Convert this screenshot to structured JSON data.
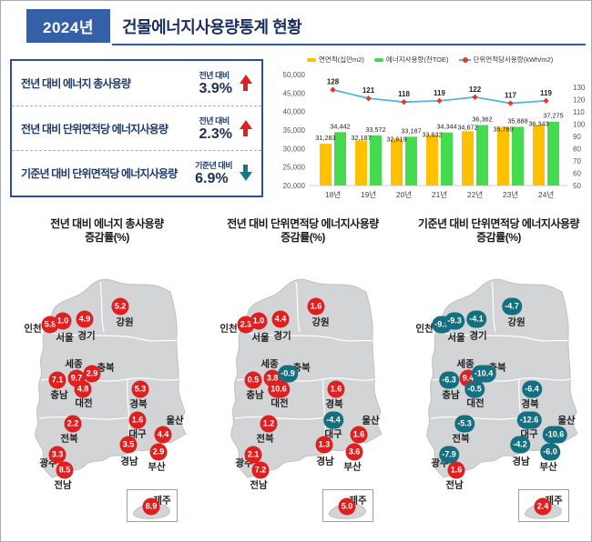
{
  "header": {
    "year_badge": "2024년",
    "title": "건물에너지사용량통계 현황"
  },
  "summary": {
    "rows": [
      {
        "label": "전년 대비 에너지 총사용량",
        "basis": "전년 대비",
        "value": "3.9%",
        "direction": "up"
      },
      {
        "label": "전년 대비 단위면적당 에너지사용량",
        "basis": "전년 대비",
        "value": "2.3%",
        "direction": "up"
      },
      {
        "label": "기준년 대비 단위면적당 에너지사용량",
        "basis": "기준년 대비",
        "value": "6.9%",
        "direction": "down"
      }
    ]
  },
  "chart_data": {
    "type": "bar",
    "subtype": "combo-bar-line",
    "categories": [
      "18년",
      "19년",
      "20년",
      "21년",
      "22년",
      "23년",
      "24년"
    ],
    "series": [
      {
        "name": "연면적(십만m2)",
        "kind": "bar",
        "color": "#FFC000",
        "values": [
          31283,
          32187,
          32619,
          33632,
          34672,
          35789,
          36343
        ],
        "labels": [
          "31,283",
          "32,187",
          "32,619",
          "33,632",
          "34,672",
          "35,789",
          "36,343"
        ]
      },
      {
        "name": "에너지사용량(천TOE)",
        "kind": "bar",
        "color": "#45DB4F",
        "values": [
          34442,
          33572,
          33187,
          34344,
          36362,
          35888,
          37275
        ],
        "labels": [
          "34,442",
          "33,572",
          "33,187",
          "34,344",
          "36,362",
          "35,888",
          "37,275"
        ]
      },
      {
        "name": "단위면적당사용량(kWh/m2)",
        "kind": "line",
        "color": "#4DB8E8",
        "marker_color": "#E03A30",
        "values": [
          128,
          121,
          118,
          119,
          122,
          117,
          119
        ],
        "labels": [
          "128",
          "121",
          "118",
          "119",
          "122",
          "117",
          "119"
        ]
      }
    ],
    "left_axis": {
      "min": 20000,
      "max": 50000,
      "ticks": [
        "50,000",
        "45,000",
        "40,000",
        "35,000",
        "30,000",
        "25,000",
        "20,000"
      ]
    },
    "right_axis": {
      "min": 50,
      "max": 130,
      "ticks": [
        "130",
        "120",
        "110",
        "100",
        "90",
        "80",
        "70",
        "60",
        "50"
      ]
    },
    "legend_position": "top",
    "grid": false
  },
  "maps": [
    {
      "title": "전년 대비 에너지 총사용량",
      "subtitle": "증감률(%)",
      "regions": [
        {
          "name": "인천",
          "value": "5.8"
        },
        {
          "name": "서울",
          "value": "1.0"
        },
        {
          "name": "경기",
          "value": "4.9"
        },
        {
          "name": "강원",
          "value": "5.2"
        },
        {
          "name": "세종",
          "value": "9.7"
        },
        {
          "name": "충북",
          "value": "2.9"
        },
        {
          "name": "충남",
          "value": "7.1"
        },
        {
          "name": "대전",
          "value": "4.8"
        },
        {
          "name": "경북",
          "value": "5.3"
        },
        {
          "name": "전북",
          "value": "2.2"
        },
        {
          "name": "대구",
          "value": "1.6"
        },
        {
          "name": "울산",
          "value": "4.4"
        },
        {
          "name": "경남",
          "value": "3.5"
        },
        {
          "name": "부산",
          "value": "2.9"
        },
        {
          "name": "광주",
          "value": "3.3"
        },
        {
          "name": "전남",
          "value": "8.5"
        },
        {
          "name": "제주",
          "value": "8.9"
        }
      ]
    },
    {
      "title": "전년 대비 단위면적당 에너지사용량",
      "subtitle": "증감률(%)",
      "regions": [
        {
          "name": "인천",
          "value": "2.3"
        },
        {
          "name": "서울",
          "value": "1.0"
        },
        {
          "name": "경기",
          "value": "4.4"
        },
        {
          "name": "강원",
          "value": "1.6"
        },
        {
          "name": "세종",
          "value": "3.8"
        },
        {
          "name": "충북",
          "value": "-0.9"
        },
        {
          "name": "충남",
          "value": "0.5"
        },
        {
          "name": "대전",
          "value": "10.6"
        },
        {
          "name": "경북",
          "value": "1.6"
        },
        {
          "name": "전북",
          "value": "1.2"
        },
        {
          "name": "대구",
          "value": "-4.4"
        },
        {
          "name": "울산",
          "value": "1.6"
        },
        {
          "name": "경남",
          "value": "1.3"
        },
        {
          "name": "부산",
          "value": "3.6"
        },
        {
          "name": "광주",
          "value": "2.1"
        },
        {
          "name": "전남",
          "value": "7.2"
        },
        {
          "name": "제주",
          "value": "5.0"
        }
      ]
    },
    {
      "title": "기준년 대비 단위면적당 에너지사용량",
      "subtitle": "증감률(%)",
      "regions": [
        {
          "name": "인천",
          "value": "-9.9"
        },
        {
          "name": "서울",
          "value": "-9.3"
        },
        {
          "name": "경기",
          "value": "-4.1"
        },
        {
          "name": "강원",
          "value": "-4.7"
        },
        {
          "name": "세종",
          "value": "9.4"
        },
        {
          "name": "충북",
          "value": "-10.4"
        },
        {
          "name": "충남",
          "value": "-6.3"
        },
        {
          "name": "대전",
          "value": "-0.5"
        },
        {
          "name": "경북",
          "value": "-6.4"
        },
        {
          "name": "전북",
          "value": "-5.3"
        },
        {
          "name": "대구",
          "value": "-12.6"
        },
        {
          "name": "울산",
          "value": "-10.6"
        },
        {
          "name": "경남",
          "value": "-4.2"
        },
        {
          "name": "부산",
          "value": "-6.0"
        },
        {
          "name": "광주",
          "value": "-7.9"
        },
        {
          "name": "전남",
          "value": "1.6"
        },
        {
          "name": "제주",
          "value": "2.4"
        }
      ]
    }
  ],
  "colors": {
    "badge_blue": "#3560A8",
    "title_navy": "#1B2E5F",
    "panel_border": "#2F4D9E",
    "increase": "#E02020",
    "decrease": "#146F80",
    "map_land": "#D2D4D6",
    "bar_yellow": "#FFC000",
    "bar_green": "#45DB4F",
    "line_blue": "#4DB8E8"
  }
}
